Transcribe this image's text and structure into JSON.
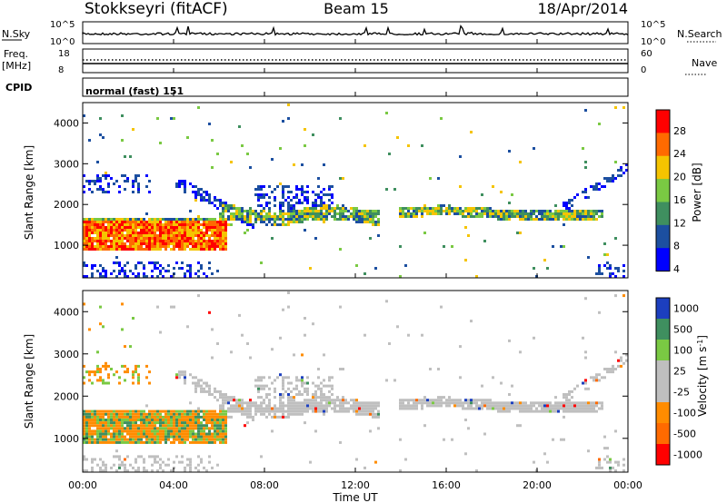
{
  "header": {
    "station": "Stokkseyri (fitACF)",
    "beam": "Beam 15",
    "date": "18/Apr/2014"
  },
  "strip_labels": {
    "nsky": "N.Sky",
    "nsearch": "N.Search",
    "freq": "Freq.",
    "freq_unit": "[MHz]",
    "nave": "Nave",
    "cpid": "CPID",
    "cpid_value": "normal (fast) 151",
    "nsky_ticks": [
      "10^5",
      "10^0"
    ],
    "nsearch_ticks": [
      "10^5",
      "10^0"
    ],
    "freq_ticks": [
      "18",
      "8"
    ],
    "nave_ticks": [
      "60",
      "0"
    ]
  },
  "chart_data": [
    {
      "type": "heatmap",
      "name": "power",
      "ylabel": "Slant Range [km]",
      "xlabel": "Time UT",
      "ylim": [
        200,
        4500
      ],
      "yticks": [
        "4000",
        "3000",
        "2000",
        "1000"
      ],
      "xticks": [
        "00:00",
        "04:00",
        "08:00",
        "12:00",
        "16:00",
        "20:00",
        "00:00"
      ],
      "colorbar_label": "Power [dB]",
      "colorbar_ticks": [
        "28",
        "24",
        "20",
        "16",
        "12",
        "8",
        "4"
      ],
      "colorbar_colors": [
        "#ff0000",
        "#ff6a00",
        "#f5c400",
        "#7ac943",
        "#3f8f5f",
        "#1c4fa0",
        "#0000ff"
      ]
    },
    {
      "type": "heatmap",
      "name": "velocity",
      "ylabel": "Slant Range [km]",
      "xlabel": "Time UT",
      "ylim": [
        200,
        4500
      ],
      "yticks": [
        "4000",
        "3000",
        "2000",
        "1000"
      ],
      "xticks": [
        "00:00",
        "04:00",
        "08:00",
        "12:00",
        "16:00",
        "20:00",
        "00:00"
      ],
      "colorbar_label": "Velocity [m s",
      "colorbar_label_sup": "-1",
      "colorbar_label_end": "]",
      "colorbar_ticks": [
        "1000",
        "500",
        "100",
        "25",
        "-25",
        "-100",
        "-500",
        "-1000"
      ],
      "colorbar_colors": [
        "#1c3fbf",
        "#3f8f5f",
        "#7ac943",
        "#bfbfbf",
        "#bfbfbf",
        "#ff8c00",
        "#ff6a00",
        "#ff0000"
      ]
    }
  ]
}
